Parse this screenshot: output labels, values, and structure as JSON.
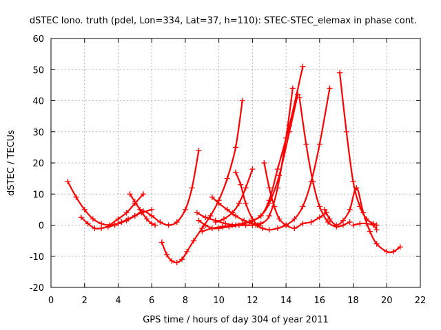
{
  "chart_data": {
    "type": "scatter",
    "title": "dSTEC Iono. truth (pdel, Lon=334, Lat=37, h=110): STEC-STEC_elemax in phase cont.",
    "xlabel": "GPS time / hours of day 304 of year 2011",
    "ylabel": "dSTEC  / TECUs",
    "xlim": [
      0,
      22
    ],
    "ylim": [
      -20,
      60
    ],
    "xticks": [
      0,
      2,
      4,
      6,
      8,
      10,
      12,
      14,
      16,
      18,
      20,
      22
    ],
    "yticks": [
      -20,
      -10,
      0,
      10,
      20,
      30,
      40,
      50,
      60
    ],
    "grid": true,
    "marker": "plus",
    "color": "#ff0000",
    "series": [
      {
        "x": [
          1.0,
          1.5,
          2.0,
          2.5,
          3.0,
          3.5,
          4.0,
          4.5,
          5.0,
          5.5,
          6.0,
          6.5,
          7.0,
          7.5,
          8.0,
          8.4,
          8.8
        ],
        "y": [
          14,
          9,
          5,
          2,
          0.5,
          0,
          0.5,
          1.5,
          3,
          4.5,
          3,
          1,
          0,
          1,
          5,
          12,
          24
        ]
      },
      {
        "x": [
          1.8,
          2.2,
          2.6,
          3.0,
          3.4,
          3.8,
          4.2,
          4.6,
          5.0,
          5.4,
          6.0
        ],
        "y": [
          2.5,
          0.5,
          -1,
          -1,
          -0.5,
          0,
          1,
          2,
          3,
          4,
          5
        ]
      },
      {
        "x": [
          3.5,
          4.0,
          4.5,
          5.0,
          5.5
        ],
        "y": [
          0,
          2,
          4,
          7,
          10
        ]
      },
      {
        "x": [
          4.7,
          5.0,
          5.3,
          5.7,
          6.0,
          6.2
        ],
        "y": [
          10,
          7.5,
          5,
          2,
          0.5,
          0
        ]
      },
      {
        "x": [
          6.6,
          6.9,
          7.2,
          7.5,
          7.8,
          8.1,
          8.5,
          9.0,
          9.5,
          10.0,
          10.5,
          11.0,
          11.4
        ],
        "y": [
          -5.5,
          -9.5,
          -11.5,
          -12,
          -11,
          -8.5,
          -5,
          -1,
          3,
          8,
          15,
          25,
          40
        ]
      },
      {
        "x": [
          8.7,
          9.2,
          9.8,
          10.4,
          11.0,
          11.6,
          12.0,
          12.5,
          13.0,
          13.5,
          14.0,
          14.4
        ],
        "y": [
          4,
          2.5,
          1.5,
          0.5,
          0,
          0,
          0,
          0.5,
          3,
          12,
          28,
          44
        ]
      },
      {
        "x": [
          8.8,
          9.2,
          9.6,
          10.0,
          10.6,
          11.2,
          11.8,
          12.5,
          13.0,
          13.5,
          14.2,
          15.0
        ],
        "y": [
          1.5,
          0,
          -1,
          -1,
          -0.5,
          0,
          1,
          3,
          8,
          18,
          32,
          51
        ]
      },
      {
        "x": [
          9.0,
          9.6,
          10.2,
          10.8,
          11.4,
          12.0,
          12.5,
          13.0,
          13.6,
          14.2,
          14.7
        ],
        "y": [
          -2,
          -1,
          -0.5,
          0,
          0.5,
          1.5,
          3,
          7,
          16,
          30,
          42
        ]
      },
      {
        "x": [
          9.6,
          10.0,
          10.5,
          11.0,
          11.5,
          12.0,
          12.4
        ],
        "y": [
          9,
          7,
          5,
          3,
          1.5,
          0.5,
          0
        ]
      },
      {
        "x": [
          9.8,
          10.3,
          10.8,
          11.2,
          11.6,
          12.0
        ],
        "y": [
          1,
          2,
          4,
          7,
          12,
          18
        ]
      },
      {
        "x": [
          11.0,
          11.3,
          11.6,
          12.0,
          12.3
        ],
        "y": [
          17,
          13,
          7,
          2,
          0
        ]
      },
      {
        "x": [
          12.7,
          13.0,
          13.3,
          13.6,
          14.0,
          14.5,
          15.0,
          15.5,
          16.0,
          16.4
        ],
        "y": [
          20,
          12,
          6,
          2,
          0,
          -1,
          0.5,
          1,
          2.5,
          4
        ]
      },
      {
        "x": [
          12.2,
          12.6,
          13.0,
          13.5,
          14.0,
          14.5,
          15.0,
          15.5,
          16.0,
          16.6
        ],
        "y": [
          0,
          -1,
          -1.5,
          -1,
          0,
          2,
          6,
          14,
          26,
          44
        ]
      },
      {
        "x": [
          14.8,
          15.2,
          15.6,
          16.0,
          16.5,
          17.0,
          17.4,
          17.8
        ],
        "y": [
          41,
          26,
          14,
          6,
          1,
          -0.5,
          0,
          1
        ]
      },
      {
        "x": [
          16.3,
          16.6,
          17.0,
          17.4,
          17.8,
          18.2,
          18.6,
          19.0,
          19.4,
          20.0,
          20.4,
          20.8
        ],
        "y": [
          5,
          2,
          0,
          1.5,
          5,
          12,
          4,
          -2,
          -6,
          -8.5,
          -8.5,
          -7
        ]
      },
      {
        "x": [
          17.2,
          17.6,
          18.0,
          18.4,
          18.8,
          19.2,
          19.4
        ],
        "y": [
          49,
          30,
          14,
          6,
          2,
          0.5,
          0
        ]
      },
      {
        "x": [
          18.0,
          18.4,
          18.8,
          19.2,
          19.4
        ],
        "y": [
          0,
          0.5,
          0.5,
          0,
          -1.5
        ]
      }
    ]
  }
}
